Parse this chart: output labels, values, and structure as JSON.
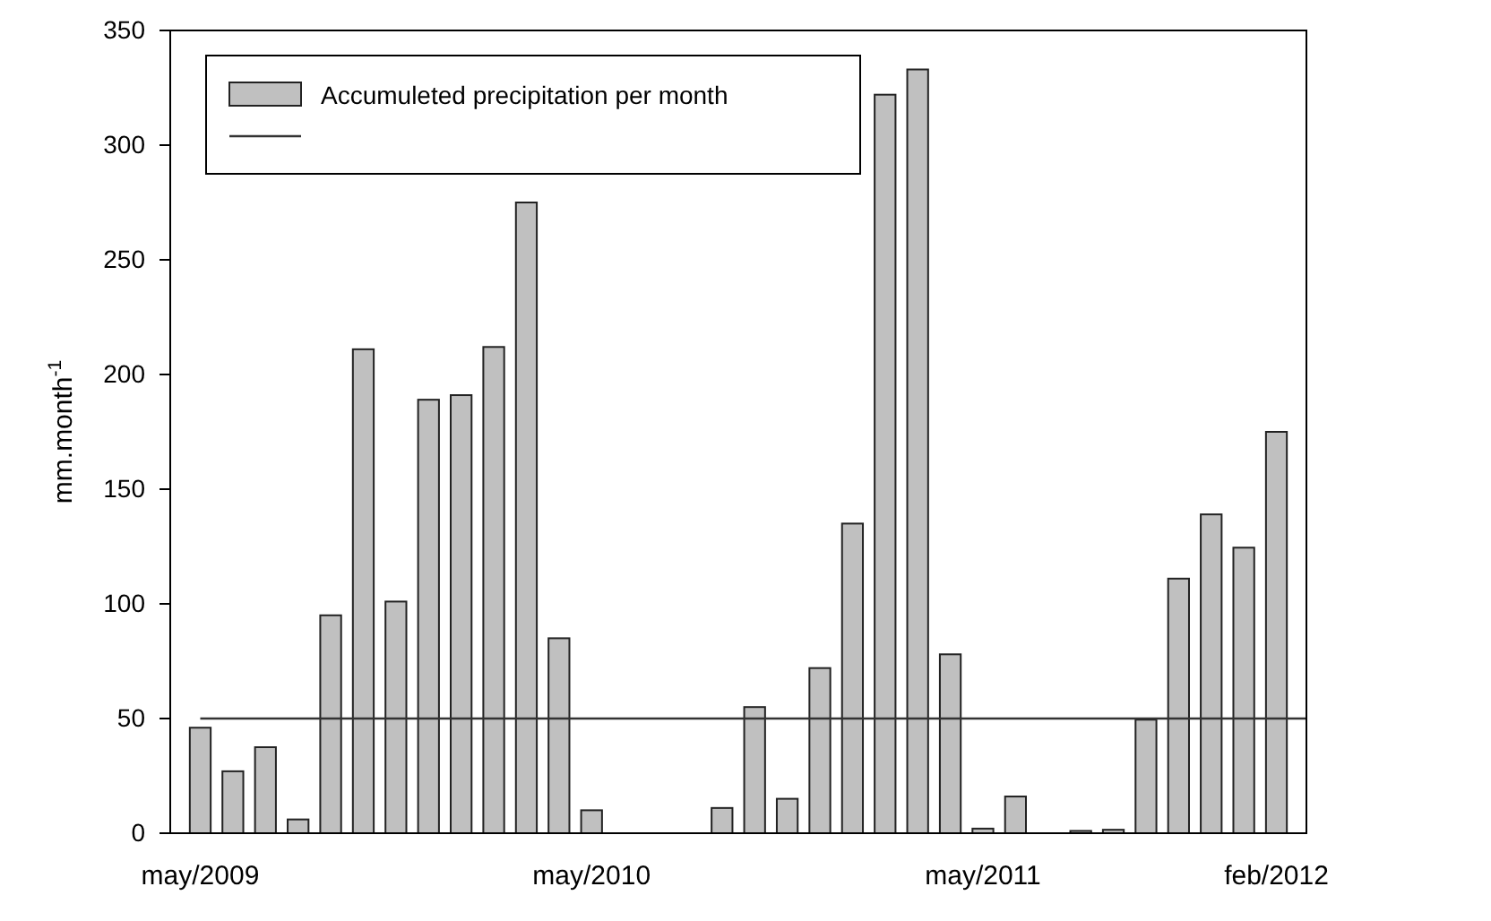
{
  "chart_data": {
    "type": "bar",
    "ylabel": "mm.month$^{-1}$",
    "categories": [
      "may/2009",
      null,
      null,
      null,
      null,
      null,
      null,
      null,
      null,
      null,
      null,
      null,
      "may/2010",
      null,
      null,
      null,
      null,
      null,
      null,
      null,
      null,
      null,
      null,
      null,
      "may/2011",
      null,
      null,
      null,
      null,
      null,
      null,
      null,
      null,
      "feb/2012"
    ],
    "series": [
      {
        "name": "Accumuleted precipitation per month",
        "color": "#c0c0c0",
        "values": [
          46,
          27,
          37.5,
          6,
          95,
          211,
          101,
          189,
          191,
          212,
          275,
          85,
          10,
          0,
          0,
          0,
          11,
          55,
          15,
          72,
          135,
          322,
          333,
          78,
          2,
          16,
          0,
          1,
          1.5,
          49.5,
          111,
          139,
          124.5,
          175
        ]
      }
    ],
    "ylim": [
      0,
      350
    ],
    "yticks": [
      0,
      50,
      100,
      150,
      200,
      250,
      300,
      350
    ],
    "ref_lines": [
      {
        "axis": "y",
        "value": 50,
        "color": "#333333"
      }
    ],
    "legend": "top left",
    "grid": false
  }
}
